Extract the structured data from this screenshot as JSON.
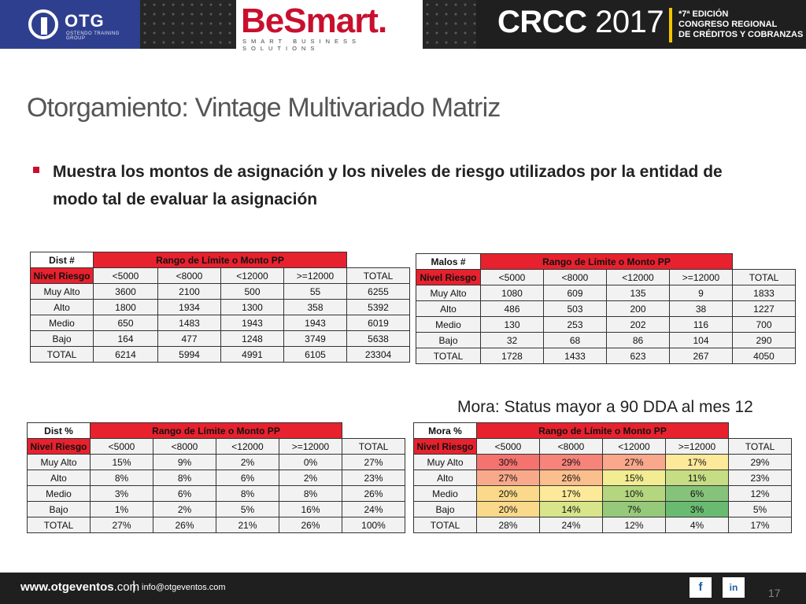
{
  "header": {
    "otg": {
      "name": "OTG",
      "subtitle": "OSTENDO TRAINING GROUP"
    },
    "besmart": {
      "name": "BeSmart.",
      "tagline": "SMART BUSINESS SOLUTIONS"
    },
    "crcc": {
      "name": "CRCC",
      "year": "2017"
    },
    "edicion": [
      "*7ª EDICIÓN",
      "CONGRESO REGIONAL",
      "DE CRÉDITOS Y COBRANZAS"
    ]
  },
  "title": "Otorgamiento: Vintage Multivariado Matriz",
  "bullet": "Muestra los montos de asignación y los niveles de riesgo utilizados por la entidad de modo tal de evaluar la asignación",
  "mora_note": "Mora: Status mayor a 90 DDA al mes 12",
  "tables": {
    "dist_num": {
      "corner": "Dist #",
      "rango": "Rango de Límite o Monto PP",
      "nivel": "Nivel Riesgo",
      "cols": [
        "<5000",
        "<8000",
        "<12000",
        ">=12000",
        "TOTAL"
      ],
      "rows": [
        {
          "label": "Muy Alto",
          "values": [
            "3600",
            "2100",
            "500",
            "55",
            "6255"
          ]
        },
        {
          "label": "Alto",
          "values": [
            "1800",
            "1934",
            "1300",
            "358",
            "5392"
          ]
        },
        {
          "label": "Medio",
          "values": [
            "650",
            "1483",
            "1943",
            "1943",
            "6019"
          ]
        },
        {
          "label": "Bajo",
          "values": [
            "164",
            "477",
            "1248",
            "3749",
            "5638"
          ]
        },
        {
          "label": "TOTAL",
          "values": [
            "6214",
            "5994",
            "4991",
            "6105",
            "23304"
          ]
        }
      ]
    },
    "malos_num": {
      "corner": "Malos #",
      "rango": "Rango de Límite o Monto PP",
      "nivel": "Nivel Riesgo",
      "cols": [
        "<5000",
        "<8000",
        "<12000",
        ">=12000",
        "TOTAL"
      ],
      "rows": [
        {
          "label": "Muy Alto",
          "values": [
            "1080",
            "609",
            "135",
            "9",
            "1833"
          ]
        },
        {
          "label": "Alto",
          "values": [
            "486",
            "503",
            "200",
            "38",
            "1227"
          ]
        },
        {
          "label": "Medio",
          "values": [
            "130",
            "253",
            "202",
            "116",
            "700"
          ]
        },
        {
          "label": "Bajo",
          "values": [
            "32",
            "68",
            "86",
            "104",
            "290"
          ]
        },
        {
          "label": "TOTAL",
          "values": [
            "1728",
            "1433",
            "623",
            "267",
            "4050"
          ]
        }
      ]
    },
    "dist_pct": {
      "corner": "Dist %",
      "rango": "Rango de Límite o Monto PP",
      "nivel": "Nivel Riesgo",
      "cols": [
        "<5000",
        "<8000",
        "<12000",
        ">=12000",
        "TOTAL"
      ],
      "rows": [
        {
          "label": "Muy Alto",
          "values": [
            "15%",
            "9%",
            "2%",
            "0%",
            "27%"
          ]
        },
        {
          "label": "Alto",
          "values": [
            "8%",
            "8%",
            "6%",
            "2%",
            "23%"
          ]
        },
        {
          "label": "Medio",
          "values": [
            "3%",
            "6%",
            "8%",
            "8%",
            "26%"
          ]
        },
        {
          "label": "Bajo",
          "values": [
            "1%",
            "2%",
            "5%",
            "16%",
            "24%"
          ]
        },
        {
          "label": "TOTAL",
          "values": [
            "27%",
            "26%",
            "21%",
            "26%",
            "100%"
          ]
        }
      ]
    },
    "mora_pct": {
      "corner": "Mora %",
      "rango": "Rango de Límite o Monto PP",
      "nivel": "Nivel Riesgo",
      "cols": [
        "<5000",
        "<8000",
        "<12000",
        ">=12000",
        "TOTAL"
      ],
      "rows": [
        {
          "label": "Muy Alto",
          "values": [
            "30%",
            "29%",
            "27%",
            "17%",
            "29%"
          ]
        },
        {
          "label": "Alto",
          "values": [
            "27%",
            "26%",
            "15%",
            "11%",
            "23%"
          ]
        },
        {
          "label": "Medio",
          "values": [
            "20%",
            "17%",
            "10%",
            "6%",
            "12%"
          ]
        },
        {
          "label": "Bajo",
          "values": [
            "20%",
            "14%",
            "7%",
            "3%",
            "5%"
          ]
        },
        {
          "label": "TOTAL",
          "values": [
            "28%",
            "24%",
            "12%",
            "4%",
            "17%"
          ]
        }
      ]
    }
  },
  "footer": {
    "site_main": "www.otgeventos",
    "site_tld": ".com",
    "separator": "|",
    "email": "info@otgeventos.com",
    "facebook": "f",
    "linkedin": "in",
    "page_number": "17"
  }
}
